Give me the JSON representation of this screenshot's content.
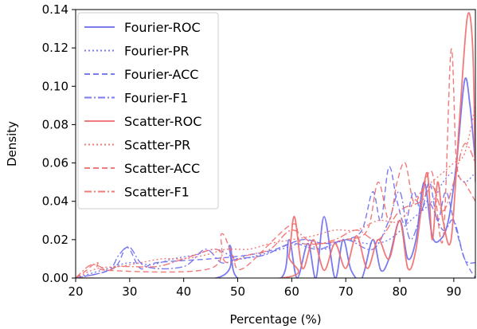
{
  "chart_data": {
    "type": "line",
    "xlabel": "Percentage (%)",
    "ylabel": "Density",
    "xlim": [
      20,
      94
    ],
    "ylim": [
      0,
      0.14
    ],
    "x_ticks": [
      20,
      30,
      40,
      50,
      60,
      70,
      80,
      90
    ],
    "x_tick_labels": [
      "20",
      "30",
      "40",
      "50",
      "60",
      "70",
      "80",
      "90"
    ],
    "y_ticks": [
      0.0,
      0.02,
      0.04,
      0.06,
      0.08,
      0.1,
      0.12,
      0.14
    ],
    "y_tick_labels": [
      "0.00",
      "0.02",
      "0.04",
      "0.06",
      "0.08",
      "0.10",
      "0.12",
      "0.14"
    ],
    "grid": false,
    "legend_position": "top-left",
    "colors": {
      "fourier": "#6b6bf0",
      "scatter": "#f06b6b"
    },
    "series": [
      {
        "name": "Fourier-ROC",
        "dash": "solid",
        "group": "fourier",
        "x": [
          20,
          46,
          48.5,
          50,
          58,
          59.5,
          61,
          63,
          64.5,
          66,
          68,
          69.5,
          71,
          73,
          75,
          76.5,
          78,
          80,
          81.5,
          83,
          84.5,
          86,
          87.5,
          89,
          90.5,
          92,
          93,
          94
        ],
        "y": [
          0,
          0,
          0.017,
          0,
          0,
          0.02,
          0,
          0.018,
          0,
          0.032,
          0,
          0.02,
          0.004,
          0,
          0.02,
          0.004,
          0.01,
          0.03,
          0.01,
          0.02,
          0.05,
          0.022,
          0.02,
          0.03,
          0.06,
          0.103,
          0.09,
          0.06
        ]
      },
      {
        "name": "Fourier-PR",
        "dash": "dotted",
        "group": "fourier",
        "x": [
          20,
          26,
          30,
          34,
          38,
          42,
          46,
          50,
          54,
          58,
          62,
          66,
          70,
          74,
          78,
          82,
          86,
          88,
          90,
          92,
          94
        ],
        "y": [
          0,
          0.005,
          0.008,
          0.007,
          0.01,
          0.012,
          0.015,
          0.01,
          0.012,
          0.015,
          0.018,
          0.015,
          0.02,
          0.018,
          0.02,
          0.03,
          0.04,
          0.05,
          0.055,
          0.05,
          0.055
        ]
      },
      {
        "name": "Fourier-ACC",
        "dash": "dashed",
        "group": "fourier",
        "x": [
          20,
          27,
          29.5,
          32,
          35,
          45,
          52,
          57,
          62,
          66,
          70,
          73,
          75,
          76.5,
          78,
          79.5,
          81,
          82.5,
          84,
          85.5,
          87,
          88.5,
          90,
          92,
          94
        ],
        "y": [
          0,
          0.005,
          0.016,
          0.005,
          0.008,
          0.01,
          0.012,
          0.015,
          0.02,
          0.018,
          0.02,
          0.025,
          0.045,
          0.03,
          0.058,
          0.04,
          0.028,
          0.045,
          0.035,
          0.05,
          0.03,
          0.045,
          0.03,
          0.01,
          0.0
        ]
      },
      {
        "name": "Fourier-F1",
        "dash": "dashdot",
        "group": "fourier",
        "x": [
          20,
          26,
          28,
          30,
          33,
          40,
          44,
          47,
          50,
          55,
          60,
          65,
          70,
          75,
          78,
          80,
          82,
          85,
          88,
          90,
          92,
          94
        ],
        "y": [
          0,
          0.004,
          0.012,
          0.016,
          0.006,
          0.006,
          0.015,
          0.008,
          0.01,
          0.012,
          0.018,
          0.015,
          0.02,
          0.015,
          0.03,
          0.045,
          0.02,
          0.04,
          0.025,
          0.03,
          0.01,
          0.008
        ]
      },
      {
        "name": "Scatter-ROC",
        "dash": "solid",
        "group": "scatter",
        "x": [
          20,
          58,
          59.5,
          60.5,
          62,
          64,
          66,
          68,
          70,
          72,
          74,
          76,
          78,
          80,
          81.5,
          83,
          85,
          86,
          87,
          88,
          89.5,
          91,
          92.5,
          93.5,
          94
        ],
        "y": [
          0,
          0,
          0.012,
          0.032,
          0.005,
          0.02,
          0.004,
          0.018,
          0.005,
          0.022,
          0.005,
          0.02,
          0.01,
          0.03,
          0.005,
          0.015,
          0.055,
          0.02,
          0.05,
          0.03,
          0.02,
          0.08,
          0.136,
          0.12,
          0.05
        ]
      },
      {
        "name": "Scatter-PR",
        "dash": "dotted",
        "group": "scatter",
        "x": [
          20,
          24,
          28,
          32,
          36,
          40,
          44,
          48,
          52,
          56,
          60,
          64,
          68,
          72,
          76,
          80,
          84,
          88,
          90,
          92,
          94
        ],
        "y": [
          0,
          0.005,
          0.006,
          0.008,
          0.01,
          0.01,
          0.012,
          0.015,
          0.015,
          0.018,
          0.02,
          0.022,
          0.025,
          0.025,
          0.03,
          0.03,
          0.045,
          0.055,
          0.06,
          0.065,
          0.09
        ]
      },
      {
        "name": "Scatter-ACC",
        "dash": "dashed",
        "group": "scatter",
        "x": [
          20,
          22,
          24,
          26,
          45,
          47,
          49,
          51,
          60,
          62,
          70,
          74,
          76,
          78,
          79.5,
          81,
          82.5,
          84,
          86,
          88,
          89.5,
          90.5,
          92,
          93,
          94
        ],
        "y": [
          0,
          0.004,
          0.008,
          0.004,
          0.005,
          0.023,
          0.012,
          0.005,
          0.028,
          0.018,
          0.02,
          0.025,
          0.05,
          0.03,
          0.05,
          0.06,
          0.04,
          0.045,
          0.055,
          0.02,
          0.119,
          0.06,
          0.05,
          0.045,
          0.04
        ]
      },
      {
        "name": "Scatter-F1",
        "dash": "dashdot",
        "group": "scatter",
        "x": [
          20,
          23,
          26,
          28,
          35,
          40,
          46,
          48,
          52,
          56,
          60,
          64,
          68,
          72,
          76,
          80,
          84,
          86,
          88,
          90,
          92,
          94
        ],
        "y": [
          0,
          0.007,
          0.004,
          0.006,
          0.006,
          0.01,
          0.015,
          0.008,
          0.012,
          0.015,
          0.025,
          0.018,
          0.02,
          0.025,
          0.02,
          0.035,
          0.04,
          0.048,
          0.035,
          0.05,
          0.07,
          0.06
        ]
      }
    ]
  }
}
